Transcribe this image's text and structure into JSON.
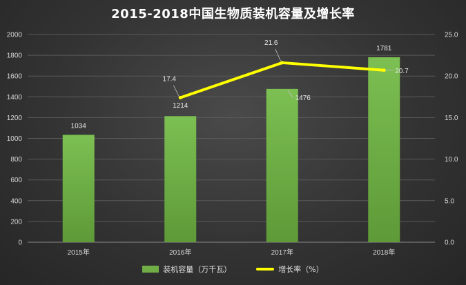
{
  "chart_data": {
    "type": "bar",
    "title": "2015-2018中国生物质装机容量及增长率",
    "categories": [
      "2015年",
      "2016年",
      "2017年",
      "2018年"
    ],
    "series": [
      {
        "name": "装机容量（万千瓦）",
        "type": "bar",
        "axis": "left",
        "color": "#70ad47",
        "values": [
          1034,
          1214,
          1476,
          1781
        ]
      },
      {
        "name": "增长率（%）",
        "type": "line",
        "axis": "right",
        "color": "#ffff00",
        "values": [
          null,
          17.4,
          21.6,
          20.7
        ]
      }
    ],
    "ylim_left": [
      0,
      2000
    ],
    "yticks_left": [
      "0",
      "200",
      "400",
      "600",
      "800",
      "1000",
      "1200",
      "1400",
      "1600",
      "1800",
      "2000"
    ],
    "ylim_right": [
      0,
      25
    ],
    "yticks_right": [
      "0.0",
      "5.0",
      "10.0",
      "15.0",
      "20.0",
      "25.0"
    ],
    "grid": true,
    "legend_position": "bottom"
  }
}
